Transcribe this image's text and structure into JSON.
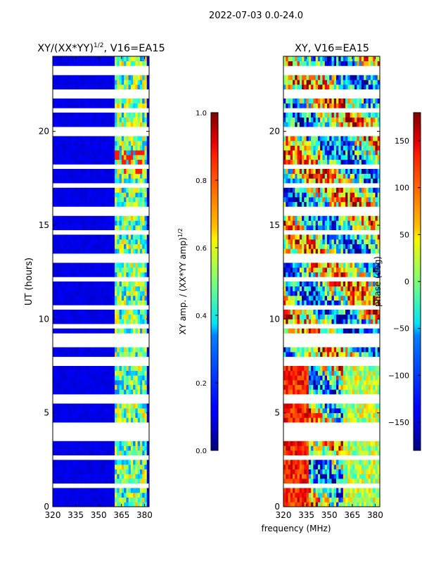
{
  "figure_title": "2022-07-03 0.0-24.0",
  "chart_data": [
    {
      "type": "heatmap",
      "title": "XY/(XX*YY)^1/2, V16=EA15",
      "title_main": "XY/(XX*YY)",
      "title_exp": "1/2",
      "title_tail": ", V16=EA15",
      "xlabel": "",
      "ylabel": "UT (hours)",
      "xlim": [
        320,
        383
      ],
      "ylim": [
        0,
        24
      ],
      "xticks": [
        320,
        335,
        350,
        365,
        380
      ],
      "yticks": [
        0,
        5,
        10,
        15,
        20
      ],
      "colorbar": {
        "label": "XY amp. / (XX*YY amp)^1/2",
        "label_main": "XY amp. / (XX*YY amp)",
        "label_exp": "1/2",
        "range": [
          0.0,
          1.0
        ],
        "ticks": [
          "0.0",
          "0.2",
          "0.4",
          "0.6",
          "0.8",
          "1.0"
        ],
        "tick_values": [
          0.0,
          0.2,
          0.4,
          0.6,
          0.8,
          1.0
        ],
        "colormap": "jet"
      }
    },
    {
      "type": "heatmap",
      "title": "XY, V16=EA15",
      "xlabel": "frequency (MHz)",
      "ylabel": "",
      "xlim": [
        320,
        383
      ],
      "ylim": [
        0,
        24
      ],
      "xticks": [
        320,
        335,
        350,
        365,
        380
      ],
      "yticks": [
        0,
        5,
        10,
        15,
        20
      ],
      "colorbar": {
        "label": "phase (deg)",
        "range": [
          -180,
          180
        ],
        "ticks": [
          "150",
          "100",
          "50",
          "0",
          "−50",
          "−100",
          "−150"
        ],
        "tick_values": [
          150,
          100,
          50,
          0,
          -50,
          -100,
          -150
        ],
        "colormap": "jet"
      }
    }
  ]
}
